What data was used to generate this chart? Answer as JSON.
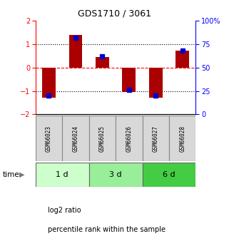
{
  "title": "GDS1710 / 3061",
  "samples": [
    "GSM66023",
    "GSM66024",
    "GSM66025",
    "GSM66026",
    "GSM66027",
    "GSM66028"
  ],
  "log2_ratio": [
    -1.3,
    1.4,
    0.45,
    -1.05,
    -1.3,
    0.72
  ],
  "percentile_rank": [
    20,
    82,
    62,
    26,
    20,
    68
  ],
  "bar_color": "#aa0000",
  "blue_color": "#0000cc",
  "ylim_left": [
    -2,
    2
  ],
  "ylim_right": [
    0,
    100
  ],
  "yticks_left": [
    -2,
    -1,
    0,
    1,
    2
  ],
  "yticks_right": [
    0,
    25,
    50,
    75,
    100
  ],
  "yticklabels_right": [
    "0",
    "25",
    "50",
    "75",
    "100%"
  ],
  "hlines": [
    -1,
    0,
    1
  ],
  "hline_styles": [
    "dotted",
    "dashed",
    "dotted"
  ],
  "hline_colors": [
    "black",
    "red",
    "black"
  ],
  "time_groups": [
    {
      "label": "1 d",
      "cols": [
        0,
        1
      ],
      "color": "#ccffcc"
    },
    {
      "label": "3 d",
      "cols": [
        2,
        3
      ],
      "color": "#99ee99"
    },
    {
      "label": "6 d",
      "cols": [
        4,
        5
      ],
      "color": "#44cc44"
    }
  ],
  "legend_items": [
    {
      "label": "log2 ratio",
      "color": "#aa0000"
    },
    {
      "label": "percentile rank within the sample",
      "color": "#0000cc"
    }
  ],
  "time_label": "time",
  "bar_width": 0.5
}
